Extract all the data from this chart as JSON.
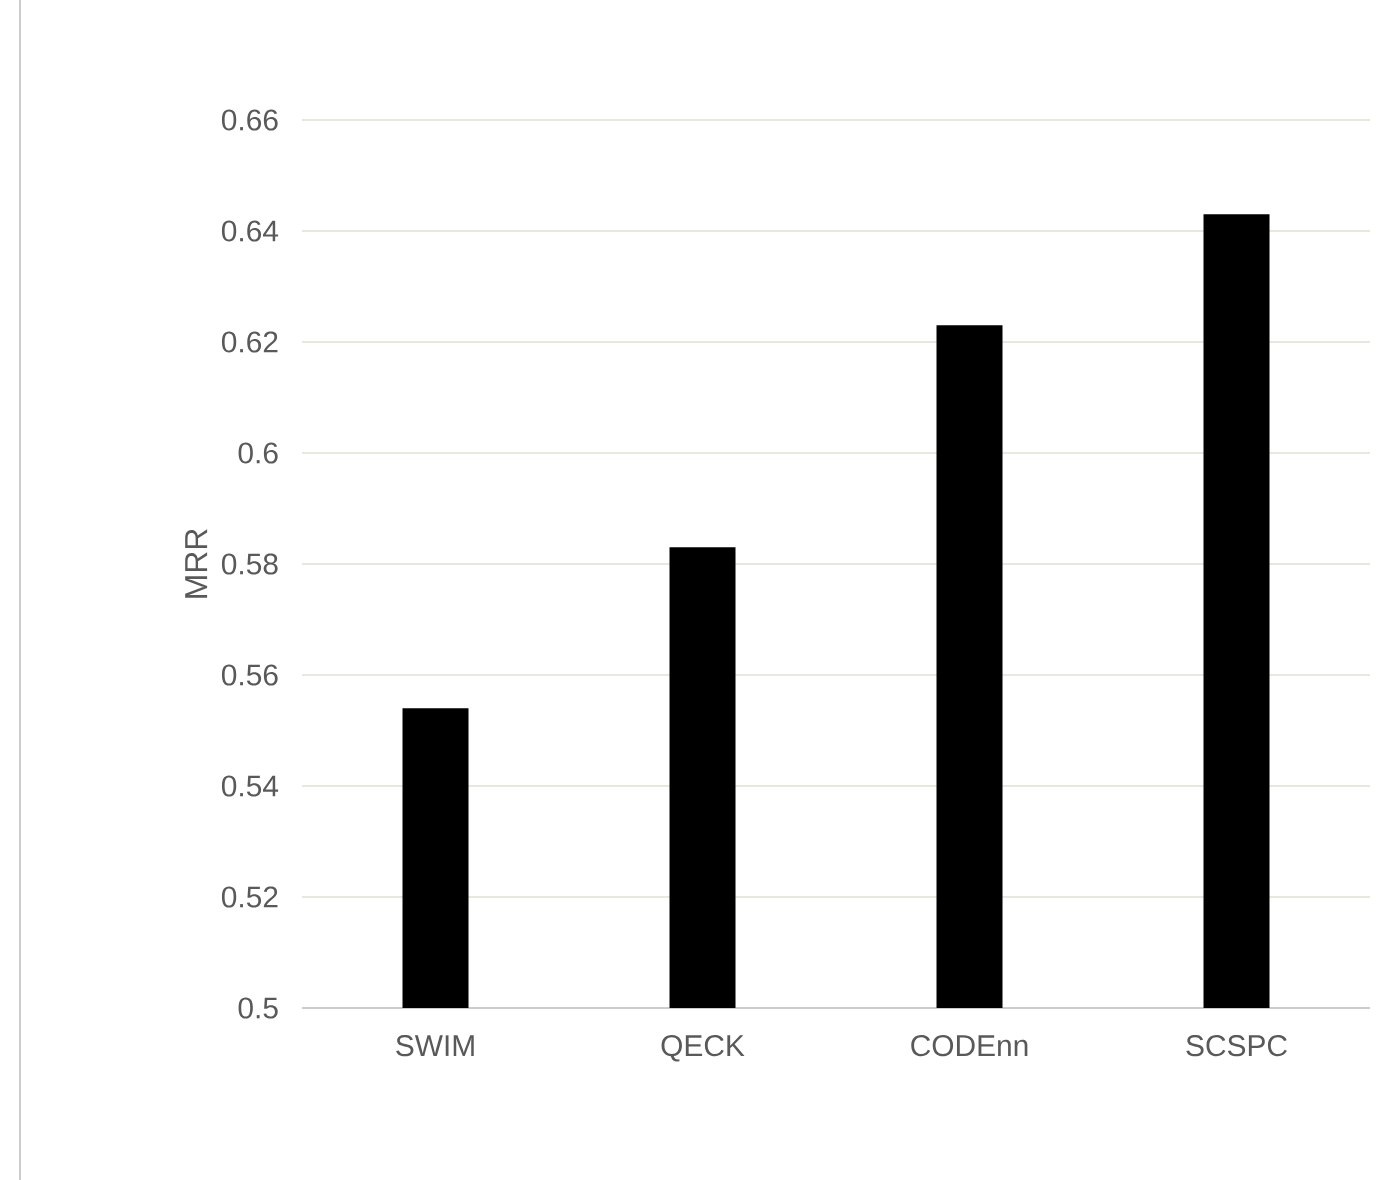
{
  "chart_data": {
    "type": "bar",
    "ylabel": "MRR",
    "categories": [
      "SWIM",
      "QECK",
      "CODEnn",
      "SCSPC"
    ],
    "values": [
      0.554,
      0.583,
      0.623,
      0.643
    ],
    "color": "#000000",
    "ylim": [
      0.5,
      0.66
    ],
    "yticks": [
      0.5,
      0.52,
      0.54,
      0.56,
      0.58,
      0.6,
      0.62,
      0.64,
      0.66
    ],
    "grid": "y"
  }
}
